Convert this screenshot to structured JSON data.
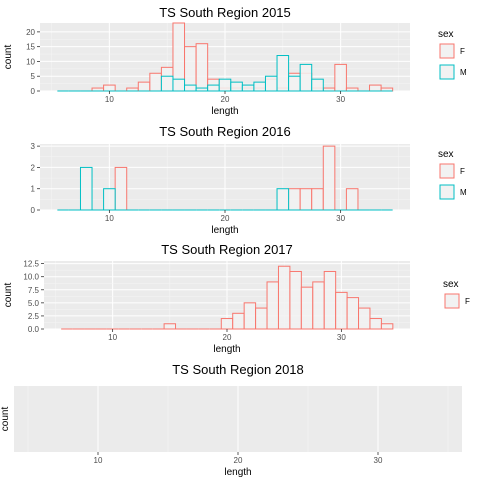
{
  "colors": {
    "F": "#F8766D",
    "M": "#00BFC4",
    "panel": "#EBEBEB",
    "grid_major": "#FFFFFF",
    "grid_minor": "#F5F5F5",
    "bar_fill": "#F2F2F2"
  },
  "chart_data": [
    {
      "type": "bar",
      "title": "TS South Region 2015",
      "xlabel": "length",
      "ylabel": "count",
      "xlim": [
        4,
        36
      ],
      "ylim": [
        0,
        23
      ],
      "x_ticks": [
        10,
        20,
        30
      ],
      "y_ticks": [
        0,
        5,
        10,
        15,
        20
      ],
      "legend": {
        "title": "sex",
        "entries": [
          "F",
          "M"
        ],
        "position": "right"
      },
      "series": [
        {
          "name": "F",
          "x": [
            9,
            10,
            11,
            12,
            13,
            14,
            15,
            16,
            17,
            18,
            19,
            20,
            21,
            22,
            23,
            24,
            25,
            26,
            27,
            28,
            29,
            30,
            31,
            32,
            33,
            34
          ],
          "values": [
            1,
            2,
            0,
            1,
            3,
            6,
            8,
            23,
            15,
            16,
            4,
            1,
            1,
            1,
            1,
            4,
            1,
            6,
            6,
            1,
            1,
            9,
            1,
            0,
            2,
            1
          ]
        },
        {
          "name": "M",
          "x": [
            6,
            7,
            8,
            9,
            10,
            11,
            12,
            13,
            14,
            15,
            16,
            17,
            18,
            19,
            20,
            21,
            22,
            23,
            24,
            25,
            26,
            27,
            28,
            29,
            30,
            31,
            32,
            33,
            34
          ],
          "values": [
            0,
            0,
            0,
            0,
            0,
            0,
            0,
            0,
            0,
            5,
            4,
            2,
            1,
            2,
            4,
            3,
            2,
            3,
            5,
            12,
            5,
            9,
            4,
            0,
            0,
            0,
            0,
            0,
            0
          ]
        }
      ]
    },
    {
      "type": "bar",
      "title": "TS South Region 2016",
      "xlabel": "length",
      "ylabel": "",
      "xlim": [
        4,
        36
      ],
      "ylim": [
        0,
        3.1
      ],
      "x_ticks": [
        10,
        20,
        30
      ],
      "y_ticks": [
        0,
        1,
        2,
        3
      ],
      "legend": {
        "title": "sex",
        "entries": [
          "F",
          "M"
        ],
        "position": "right"
      },
      "series": [
        {
          "name": "F",
          "x": [
            11,
            26,
            27,
            28,
            29,
            31
          ],
          "values": [
            2,
            1,
            1,
            1,
            3,
            1
          ]
        },
        {
          "name": "M",
          "x": [
            6,
            7,
            8,
            9,
            10,
            11,
            12,
            13,
            14,
            15,
            16,
            17,
            18,
            19,
            20,
            21,
            22,
            23,
            24,
            25,
            26,
            27,
            28,
            29,
            30,
            31,
            32,
            33,
            34
          ],
          "values": [
            0,
            0,
            2,
            0,
            1,
            0,
            0,
            0,
            0,
            0,
            0,
            0,
            0,
            0,
            0,
            0,
            0,
            0,
            0,
            1,
            0,
            0,
            0,
            0,
            0,
            0,
            0,
            0,
            0
          ]
        }
      ]
    },
    {
      "type": "bar",
      "title": "TS South Region 2017",
      "xlabel": "length",
      "ylabel": "count",
      "xlim": [
        4,
        36
      ],
      "ylim": [
        0,
        13
      ],
      "x_ticks": [
        10,
        20,
        30
      ],
      "y_ticks": [
        0.0,
        2.5,
        5.0,
        7.5,
        10.0,
        12.5
      ],
      "y_tick_labels": [
        "0.0",
        "2.5",
        "5.0",
        "7.5",
        "10.0",
        "12.5"
      ],
      "legend": {
        "title": "sex",
        "entries": [
          "F"
        ],
        "position": "right"
      },
      "series": [
        {
          "name": "F",
          "x": [
            6,
            7,
            8,
            9,
            10,
            11,
            12,
            13,
            14,
            15,
            16,
            17,
            18,
            19,
            20,
            21,
            22,
            23,
            24,
            25,
            26,
            27,
            28,
            29,
            30,
            31,
            32,
            33,
            34
          ],
          "values": [
            0,
            0,
            0,
            0,
            0,
            0,
            0,
            0,
            0,
            1,
            0,
            0,
            0,
            0,
            2,
            3,
            5,
            4,
            9,
            12,
            11,
            8,
            9,
            11,
            7,
            6,
            4,
            2,
            1
          ]
        }
      ]
    },
    {
      "type": "bar",
      "title": "TS South Region 2018",
      "xlabel": "length",
      "ylabel": "count",
      "xlim": [
        4,
        36
      ],
      "x_ticks": [
        10,
        20,
        30
      ],
      "y_ticks": [],
      "series": []
    }
  ]
}
